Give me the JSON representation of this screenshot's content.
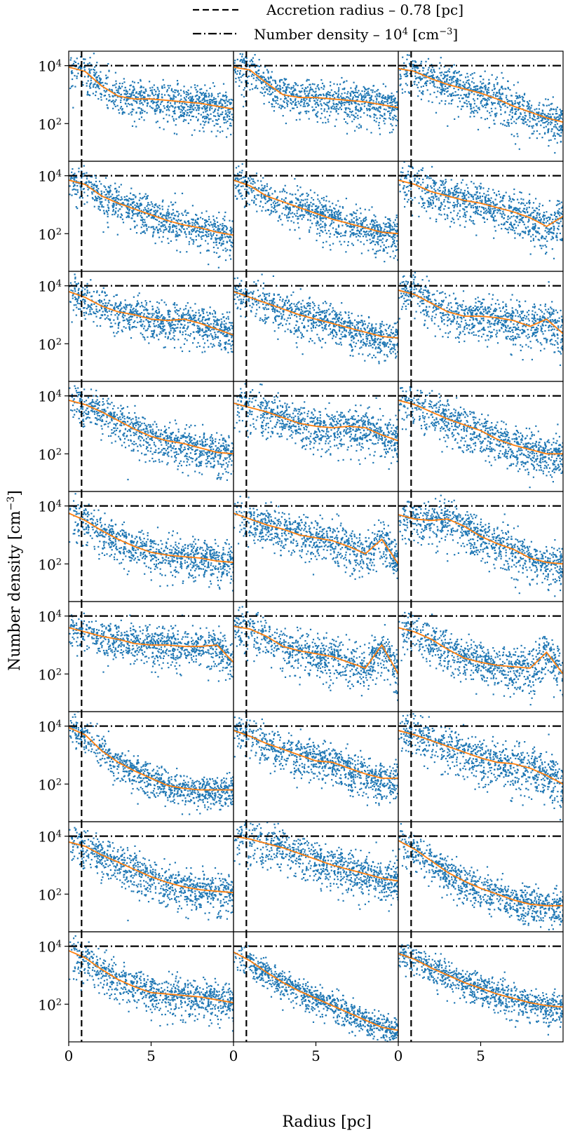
{
  "chart_data": {
    "type": "scatter",
    "layout": {
      "rows": 9,
      "cols": 3,
      "shared_axes": true
    },
    "xlabel": "Radius [pc]",
    "ylabel_prefix": "Number density [cm",
    "ylabel_exp": "−3",
    "ylabel_suffix": "]",
    "xlim": [
      0,
      10
    ],
    "ylim_log10": [
      0.7,
      4.5
    ],
    "xtick_labels": [
      {
        "value": 0,
        "label": "0"
      },
      {
        "value": 5,
        "label": "5"
      }
    ],
    "ytick_labels": [
      {
        "value": 2,
        "base": "10",
        "exp": "2"
      },
      {
        "value": 4,
        "base": "10",
        "exp": "4"
      }
    ],
    "legend": {
      "position": "top-center",
      "entries": [
        {
          "style": "dashed",
          "label_text": "Accretion radius – 0.78 [pc]"
        },
        {
          "style": "dashdot",
          "label_text": "Number density – 10",
          "label_exp": "4",
          "label_suffix": " [cm",
          "label_exp2": "−3",
          "label_end": "]"
        }
      ]
    },
    "reference_lines": {
      "accretion_radius_pc": 0.78,
      "number_density_cm3": 10000
    },
    "colors": {
      "scatter": "#1f77b4",
      "median": "#ff7f0e",
      "reference": "#000000"
    },
    "series_note": "Each panel: scatter of gas cell number density vs radius (blue) with median profile (orange). Median profile given as log10(n) at r = 0,1,...,10 pc.",
    "panels": [
      {
        "row": 0,
        "col": 0,
        "median_log10": [
          3.95,
          3.8,
          3.3,
          2.95,
          2.85,
          2.85,
          2.8,
          2.75,
          2.7,
          2.6,
          2.5
        ],
        "spread": 0.55
      },
      {
        "row": 0,
        "col": 1,
        "median_log10": [
          3.95,
          3.85,
          3.4,
          3.0,
          2.9,
          2.9,
          2.85,
          2.8,
          2.75,
          2.65,
          2.55
        ],
        "spread": 0.55
      },
      {
        "row": 0,
        "col": 2,
        "median_log10": [
          3.9,
          3.8,
          3.55,
          3.35,
          3.2,
          3.05,
          2.85,
          2.6,
          2.4,
          2.2,
          2.05
        ],
        "spread": 0.6
      },
      {
        "row": 1,
        "col": 0,
        "median_log10": [
          3.85,
          3.7,
          3.3,
          3.05,
          2.85,
          2.65,
          2.45,
          2.3,
          2.2,
          2.05,
          1.95
        ],
        "spread": 0.55
      },
      {
        "row": 1,
        "col": 1,
        "median_log10": [
          3.85,
          3.65,
          3.3,
          3.1,
          2.9,
          2.7,
          2.5,
          2.35,
          2.2,
          2.05,
          2.0
        ],
        "spread": 0.55
      },
      {
        "row": 1,
        "col": 2,
        "median_log10": [
          3.85,
          3.7,
          3.45,
          3.3,
          3.15,
          3.05,
          2.9,
          2.75,
          2.55,
          2.25,
          2.6
        ],
        "spread": 0.6
      },
      {
        "row": 2,
        "col": 0,
        "median_log10": [
          3.8,
          3.6,
          3.3,
          3.1,
          3.0,
          2.85,
          2.8,
          2.85,
          2.7,
          2.5,
          2.3
        ],
        "spread": 0.55
      },
      {
        "row": 2,
        "col": 1,
        "median_log10": [
          3.8,
          3.6,
          3.4,
          3.2,
          3.0,
          2.85,
          2.7,
          2.55,
          2.4,
          2.25,
          2.2
        ],
        "spread": 0.55
      },
      {
        "row": 2,
        "col": 2,
        "median_log10": [
          3.85,
          3.7,
          3.4,
          3.1,
          2.95,
          2.95,
          2.9,
          2.8,
          2.6,
          2.85,
          2.35
        ],
        "spread": 0.6
      },
      {
        "row": 3,
        "col": 0,
        "median_log10": [
          3.85,
          3.7,
          3.45,
          3.15,
          2.85,
          2.6,
          2.45,
          2.35,
          2.2,
          2.05,
          2.0
        ],
        "spread": 0.55
      },
      {
        "row": 3,
        "col": 1,
        "median_log10": [
          3.75,
          3.6,
          3.45,
          3.25,
          3.05,
          2.95,
          2.9,
          2.95,
          2.9,
          2.65,
          2.45
        ],
        "spread": 0.6
      },
      {
        "row": 3,
        "col": 2,
        "median_log10": [
          3.85,
          3.7,
          3.45,
          3.2,
          3.0,
          2.8,
          2.5,
          2.3,
          2.15,
          2.0,
          2.0
        ],
        "spread": 0.6
      },
      {
        "row": 4,
        "col": 0,
        "median_log10": [
          3.75,
          3.5,
          3.15,
          2.85,
          2.6,
          2.4,
          2.3,
          2.25,
          2.2,
          2.1,
          2.05
        ],
        "spread": 0.55
      },
      {
        "row": 4,
        "col": 1,
        "median_log10": [
          3.75,
          3.55,
          3.35,
          3.2,
          3.0,
          2.9,
          2.8,
          2.6,
          2.35,
          2.85,
          2.0
        ],
        "spread": 0.6
      },
      {
        "row": 4,
        "col": 2,
        "median_log10": [
          3.7,
          3.55,
          3.5,
          3.55,
          3.3,
          2.95,
          2.7,
          2.5,
          2.2,
          2.05,
          2.0
        ],
        "spread": 0.6
      },
      {
        "row": 5,
        "col": 0,
        "median_log10": [
          3.6,
          3.45,
          3.3,
          3.2,
          3.05,
          3.0,
          3.0,
          2.95,
          2.95,
          3.0,
          2.4
        ],
        "spread": 0.55
      },
      {
        "row": 5,
        "col": 1,
        "median_log10": [
          3.65,
          3.55,
          3.3,
          2.95,
          2.8,
          2.7,
          2.6,
          2.4,
          2.2,
          3.0,
          2.0
        ],
        "spread": 0.6
      },
      {
        "row": 5,
        "col": 2,
        "median_log10": [
          3.6,
          3.45,
          3.2,
          2.85,
          2.55,
          2.4,
          2.3,
          2.25,
          2.2,
          2.75,
          2.0
        ],
        "spread": 0.6
      },
      {
        "row": 6,
        "col": 0,
        "median_log10": [
          3.95,
          3.7,
          3.15,
          2.75,
          2.45,
          2.2,
          1.95,
          1.85,
          1.8,
          1.8,
          1.8
        ],
        "spread": 0.45
      },
      {
        "row": 6,
        "col": 1,
        "median_log10": [
          3.85,
          3.65,
          3.4,
          3.2,
          3.0,
          2.8,
          2.75,
          2.55,
          2.35,
          2.2,
          2.2
        ],
        "spread": 0.55
      },
      {
        "row": 6,
        "col": 2,
        "median_log10": [
          3.85,
          3.7,
          3.5,
          3.3,
          3.1,
          2.9,
          2.75,
          2.7,
          2.55,
          2.3,
          2.0
        ],
        "spread": 0.65
      },
      {
        "row": 7,
        "col": 0,
        "median_log10": [
          3.8,
          3.65,
          3.35,
          3.1,
          2.85,
          2.6,
          2.4,
          2.25,
          2.15,
          2.1,
          2.05
        ],
        "spread": 0.55
      },
      {
        "row": 7,
        "col": 1,
        "median_log10": [
          4.0,
          3.9,
          3.75,
          3.6,
          3.4,
          3.2,
          3.0,
          2.85,
          2.7,
          2.55,
          2.45
        ],
        "spread": 0.6
      },
      {
        "row": 7,
        "col": 2,
        "median_log10": [
          3.85,
          3.55,
          3.15,
          2.75,
          2.45,
          2.2,
          2.0,
          1.8,
          1.65,
          1.6,
          1.6
        ],
        "spread": 0.5
      },
      {
        "row": 8,
        "col": 0,
        "median_log10": [
          3.85,
          3.6,
          3.2,
          2.85,
          2.6,
          2.4,
          2.35,
          2.3,
          2.25,
          2.15,
          2.05
        ],
        "spread": 0.55
      },
      {
        "row": 8,
        "col": 1,
        "median_log10": [
          3.8,
          3.5,
          3.1,
          2.75,
          2.45,
          2.2,
          1.95,
          1.7,
          1.45,
          1.2,
          1.1
        ],
        "spread": 0.4
      },
      {
        "row": 8,
        "col": 2,
        "median_log10": [
          3.75,
          3.55,
          3.25,
          3.0,
          2.75,
          2.55,
          2.35,
          2.2,
          2.05,
          1.95,
          1.9
        ],
        "spread": 0.45
      }
    ]
  }
}
